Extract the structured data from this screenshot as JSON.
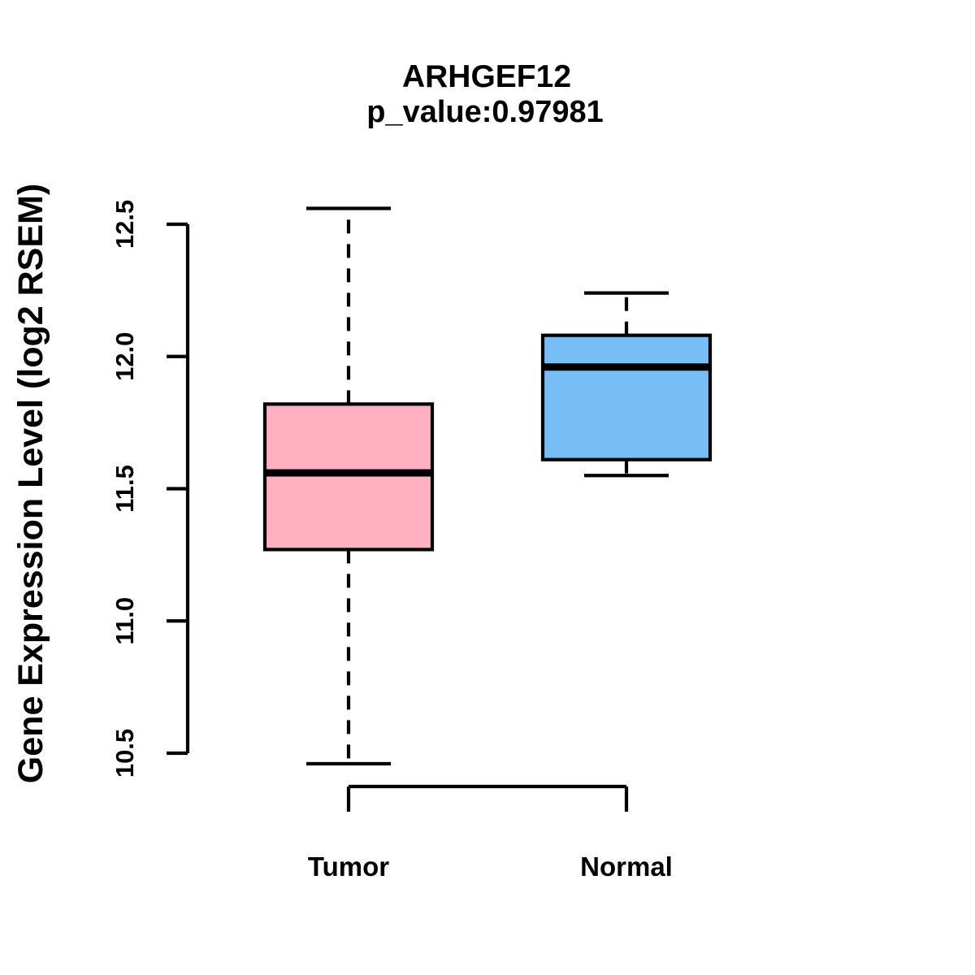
{
  "chart_data": {
    "type": "boxplot",
    "title": "ARHGEF12",
    "subtitle": "p_value:0.97981",
    "ylabel": "Gene Expression Level (log2 RSEM)",
    "xlabel": "",
    "categories": [
      "Tumor",
      "Normal"
    ],
    "series": [
      {
        "name": "Tumor",
        "box_color": "#FFB0C1",
        "whisker_low": 10.46,
        "q1": 11.27,
        "median": 11.56,
        "q3": 11.82,
        "whisker_high": 12.56,
        "outliers": []
      },
      {
        "name": "Normal",
        "box_color": "#76BEF5",
        "whisker_low": 11.55,
        "q1": 11.61,
        "median": 11.96,
        "q3": 12.08,
        "whisker_high": 12.24,
        "outliers": []
      }
    ],
    "yticks": [
      {
        "value": 10.5,
        "label": "10.5"
      },
      {
        "value": 11.0,
        "label": "11.0"
      },
      {
        "value": 11.5,
        "label": "11.5"
      },
      {
        "value": 12.0,
        "label": "12.0"
      },
      {
        "value": 12.5,
        "label": "12.5"
      }
    ],
    "ylim": [
      10.4,
      12.62
    ],
    "grid": false,
    "legend_position": "none",
    "whisker_style": "dashed",
    "line_color": "#000000",
    "background_color": "#ffffff"
  }
}
